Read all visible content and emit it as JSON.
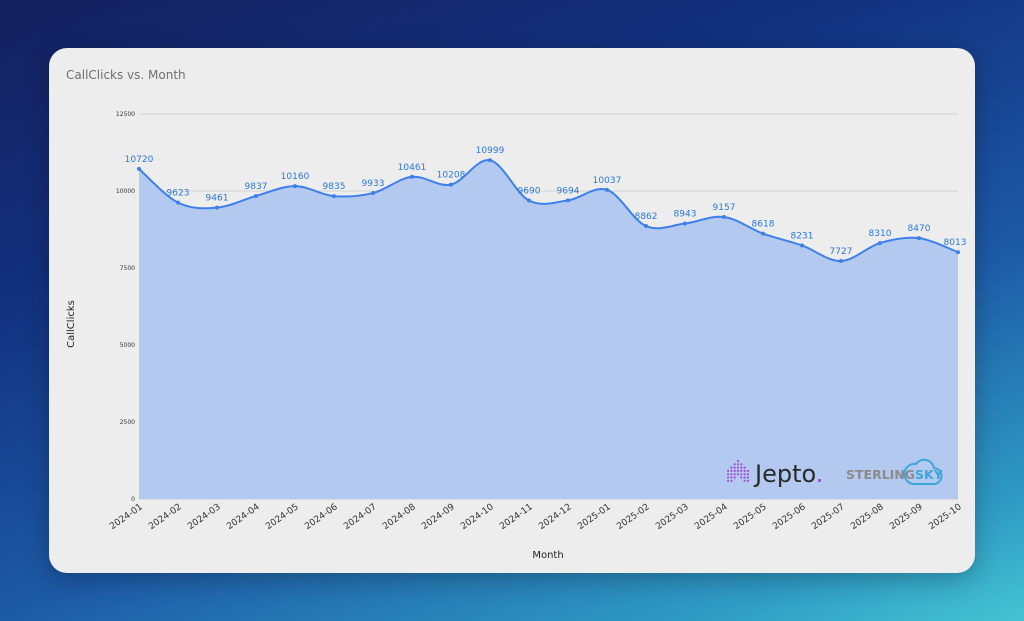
{
  "chart_data": {
    "type": "area",
    "title": "CallClicks vs. Month",
    "xlabel": "Month",
    "ylabel": "CallClicks",
    "ylim": [
      0,
      12500
    ],
    "yticks": [
      0,
      2500,
      5000,
      7500,
      10000,
      12500
    ],
    "grid": true,
    "categories": [
      "2024-01",
      "2024-02",
      "2024-03",
      "2024-04",
      "2024-05",
      "2024-06",
      "2024-07",
      "2024-08",
      "2024-09",
      "2024-10",
      "2024-11",
      "2024-12",
      "2025-01",
      "2025-02",
      "2025-03",
      "2025-04",
      "2025-05",
      "2025-06",
      "2025-07",
      "2025-08",
      "2025-09",
      "2025-10"
    ],
    "series": [
      {
        "name": "CallClicks",
        "values": [
          10720,
          9623,
          9461,
          9837,
          10160,
          9835,
          9933,
          10461,
          10208,
          10999,
          9690,
          9694,
          10037,
          8862,
          8943,
          9157,
          8618,
          8231,
          7727,
          8310,
          8470,
          8013
        ]
      }
    ],
    "colors": {
      "line": "#3d80ea",
      "fill": "#b4c9f0",
      "label": "#2b78d8"
    }
  },
  "branding": {
    "jepto": {
      "name": "Jepto",
      "dot": ".",
      "dot_color": "#9b3bd8"
    },
    "sterling": {
      "part1": "STERLING",
      "part2": "SKY",
      "color1": "#8a8a8a",
      "color2": "#3aa8d8"
    }
  }
}
